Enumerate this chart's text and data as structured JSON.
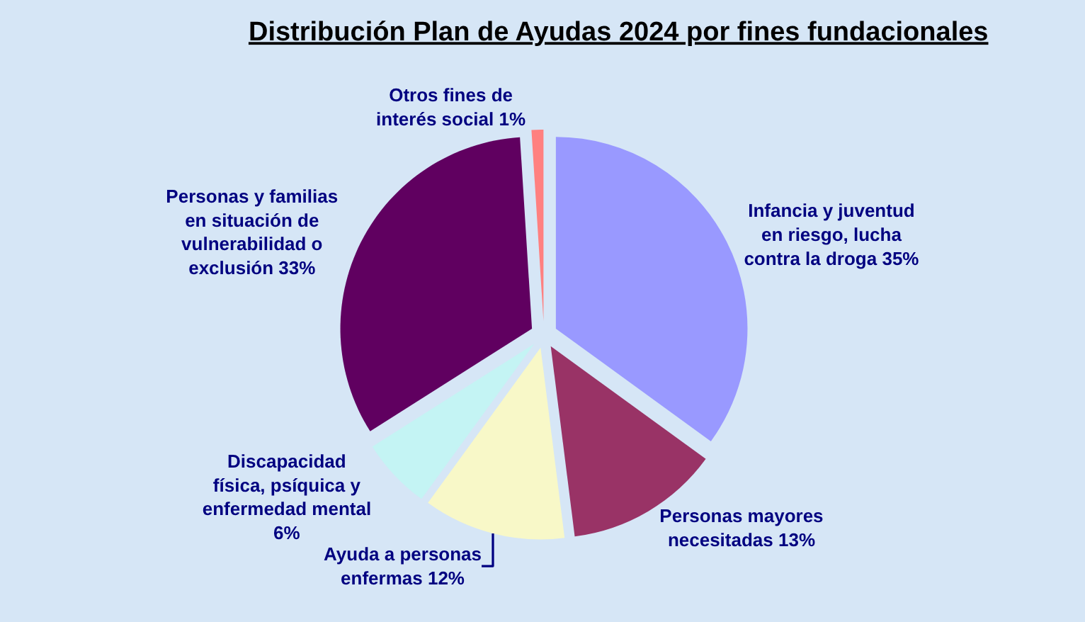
{
  "chart_data": {
    "type": "pie",
    "title": "Distribución Plan de Ayudas 2024 por fines fundacionales",
    "categories": [
      "Infancia y juventud en riesgo, lucha contra la droga",
      "Personas mayores necesitadas",
      "Ayuda a personas enfermas",
      "Discapacidad física, psíquica y enfermedad mental",
      "Personas y familias en situación de vulnerabilidad o exclusión",
      "Otros fines de interés social"
    ],
    "values": [
      35,
      13,
      12,
      6,
      33,
      1
    ],
    "colors": [
      "#9999ff",
      "#993366",
      "#f8f8c8",
      "#c4f4f4",
      "#600060",
      "#ff8080"
    ],
    "value_labels": [
      "35%",
      "13%",
      "12%",
      "6%",
      "33%",
      "1%"
    ]
  }
}
